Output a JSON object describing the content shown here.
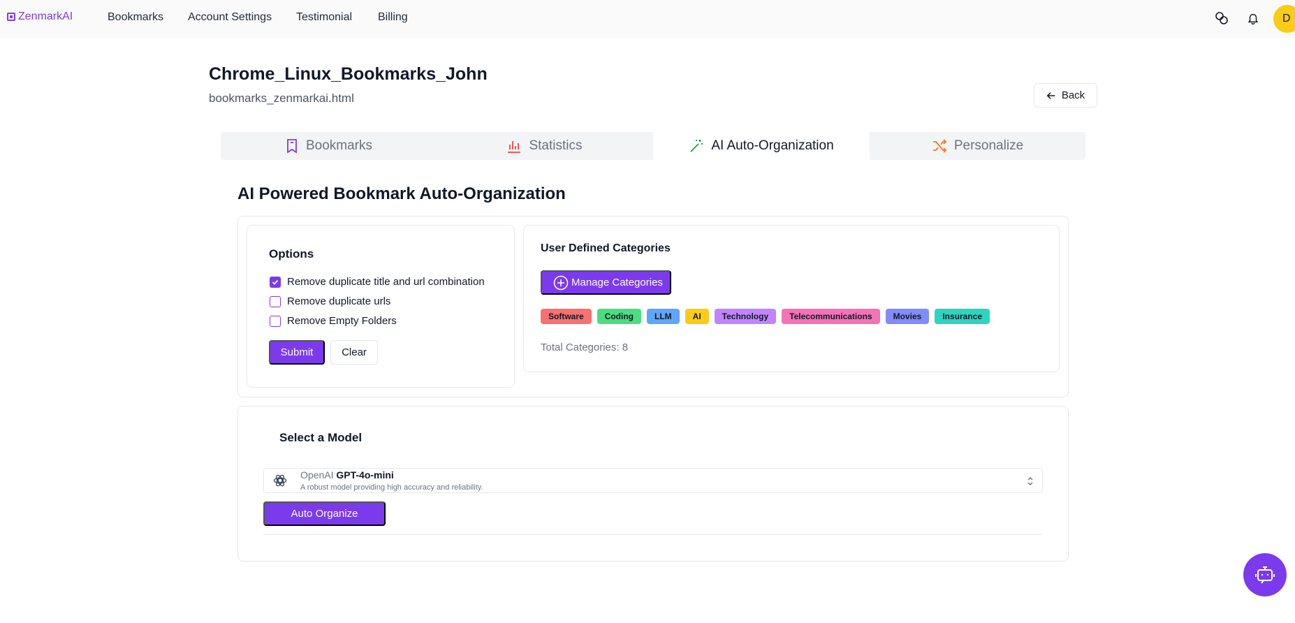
{
  "nav": {
    "brand": "ZenmarkAI",
    "links": [
      "Bookmarks",
      "Account Settings",
      "Testimonial",
      "Billing"
    ],
    "avatar_initial": "D"
  },
  "header": {
    "title": "Chrome_Linux_Bookmarks_John",
    "subtitle": "bookmarks_zenmarkai.html",
    "back_label": "Back"
  },
  "tabs": [
    {
      "label": "Bookmarks",
      "icon": "bookmark-icon"
    },
    {
      "label": "Statistics",
      "icon": "bar-chart-icon"
    },
    {
      "label": "AI Auto-Organization",
      "icon": "magic-wand-icon",
      "active": true
    },
    {
      "label": "Personalize",
      "icon": "shuffle-icon"
    }
  ],
  "section": {
    "title": "AI Powered Bookmark Auto-Organization"
  },
  "options": {
    "title": "Options",
    "items": [
      {
        "label": "Remove duplicate title and url combination",
        "checked": true
      },
      {
        "label": "Remove duplicate urls",
        "checked": false
      },
      {
        "label": "Remove Empty Folders",
        "checked": false
      }
    ],
    "submit_label": "Submit",
    "clear_label": "Clear"
  },
  "categories": {
    "title": "User Defined Categories",
    "manage_label": "Manage Categories",
    "chips": [
      {
        "label": "Software",
        "color": "#f87171"
      },
      {
        "label": "Coding",
        "color": "#4ade80"
      },
      {
        "label": "LLM",
        "color": "#60a5fa"
      },
      {
        "label": "AI",
        "color": "#facc15"
      },
      {
        "label": "Technology",
        "color": "#c084fc"
      },
      {
        "label": "Telecommunications",
        "color": "#f472b6"
      },
      {
        "label": "Movies",
        "color": "#818cf8"
      },
      {
        "label": "Insurance",
        "color": "#2dd4bf"
      }
    ],
    "total_label": "Total Categories: 8"
  },
  "model": {
    "title": "Select a Model",
    "provider": "OpenAI",
    "name": "GPT-4o-mini",
    "description": "A robust model providing high accuracy and reliability.",
    "auto_label": "Auto Organize"
  },
  "colors": {
    "accent": "#7c3aed"
  }
}
